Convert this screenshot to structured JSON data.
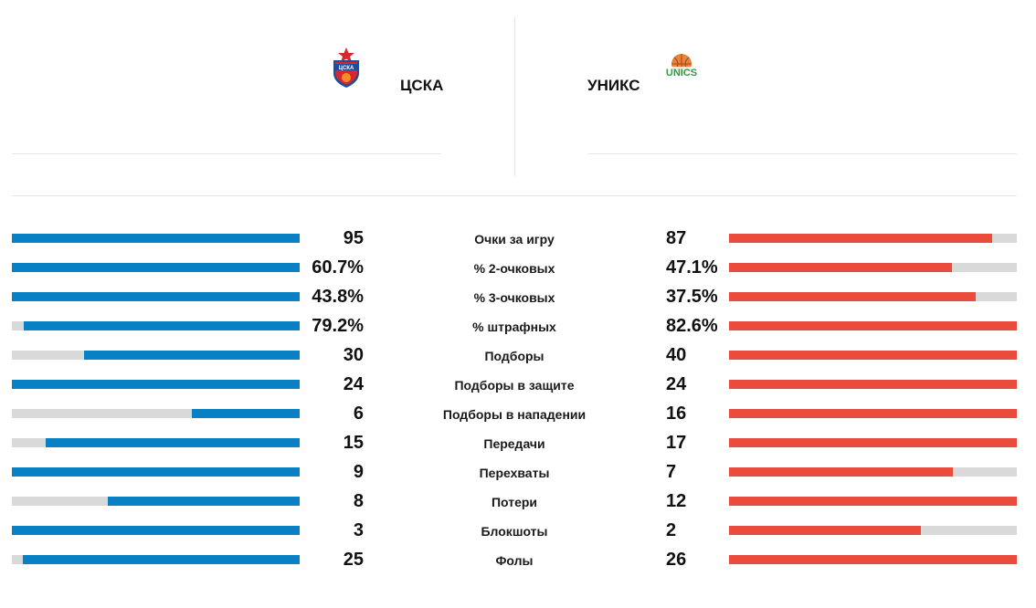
{
  "teams": {
    "home": {
      "name": "ЦСКА",
      "logo_text": "ЦСКА",
      "color": "#0a80c4"
    },
    "away": {
      "name": "УНИКС",
      "logo_text": "UNICS",
      "color": "#e94b3c"
    }
  },
  "stats": [
    {
      "label": "Очки за игру",
      "home": "95",
      "away": "87",
      "home_fill": 1.0,
      "away_fill": 0.915
    },
    {
      "label": "% 2-очковых",
      "home": "60.7%",
      "away": "47.1%",
      "home_fill": 1.0,
      "away_fill": 0.776
    },
    {
      "label": "% 3-очковых",
      "home": "43.8%",
      "away": "37.5%",
      "home_fill": 1.0,
      "away_fill": 0.856
    },
    {
      "label": "% штрафных",
      "home": "79.2%",
      "away": "82.6%",
      "home_fill": 0.959,
      "away_fill": 1.0
    },
    {
      "label": "Подборы",
      "home": "30",
      "away": "40",
      "home_fill": 0.75,
      "away_fill": 1.0
    },
    {
      "label": "Подборы в защите",
      "home": "24",
      "away": "24",
      "home_fill": 1.0,
      "away_fill": 1.0
    },
    {
      "label": "Подборы в нападении",
      "home": "6",
      "away": "16",
      "home_fill": 0.375,
      "away_fill": 1.0
    },
    {
      "label": "Передачи",
      "home": "15",
      "away": "17",
      "home_fill": 0.882,
      "away_fill": 1.0
    },
    {
      "label": "Перехваты",
      "home": "9",
      "away": "7",
      "home_fill": 1.0,
      "away_fill": 0.778
    },
    {
      "label": "Потери",
      "home": "8",
      "away": "12",
      "home_fill": 0.667,
      "away_fill": 1.0
    },
    {
      "label": "Блокшоты",
      "home": "3",
      "away": "2",
      "home_fill": 1.0,
      "away_fill": 0.667
    },
    {
      "label": "Фолы",
      "home": "25",
      "away": "26",
      "home_fill": 0.962,
      "away_fill": 1.0
    }
  ]
}
